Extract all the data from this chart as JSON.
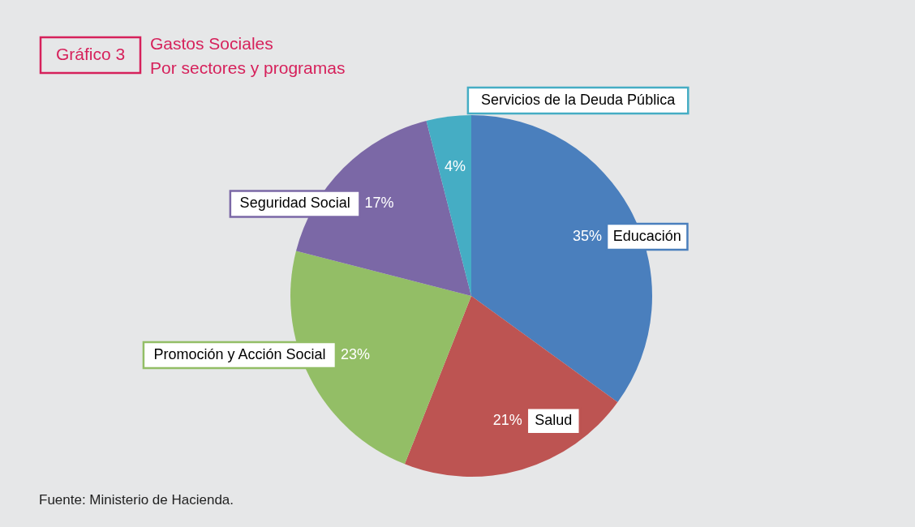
{
  "chart_data": {
    "type": "pie",
    "title": "Gráfico 3",
    "subtitle": "Gastos Sociales\nPor sectores y programas",
    "categories": [
      "Educación",
      "Salud",
      "Promoción y Acción Social",
      "Seguridad Social",
      "Servicios de la Deuda Pública"
    ],
    "values": [
      35,
      21,
      23,
      17,
      4
    ],
    "colors": [
      "#4a7fbd",
      "#bd5452",
      "#93be66",
      "#7b68a6",
      "#45adc4"
    ],
    "value_labels": [
      "35%",
      "21%",
      "23%",
      "17%",
      "4%"
    ],
    "annotations": [
      "Fuente: Ministerio de Hacienda."
    ]
  }
}
